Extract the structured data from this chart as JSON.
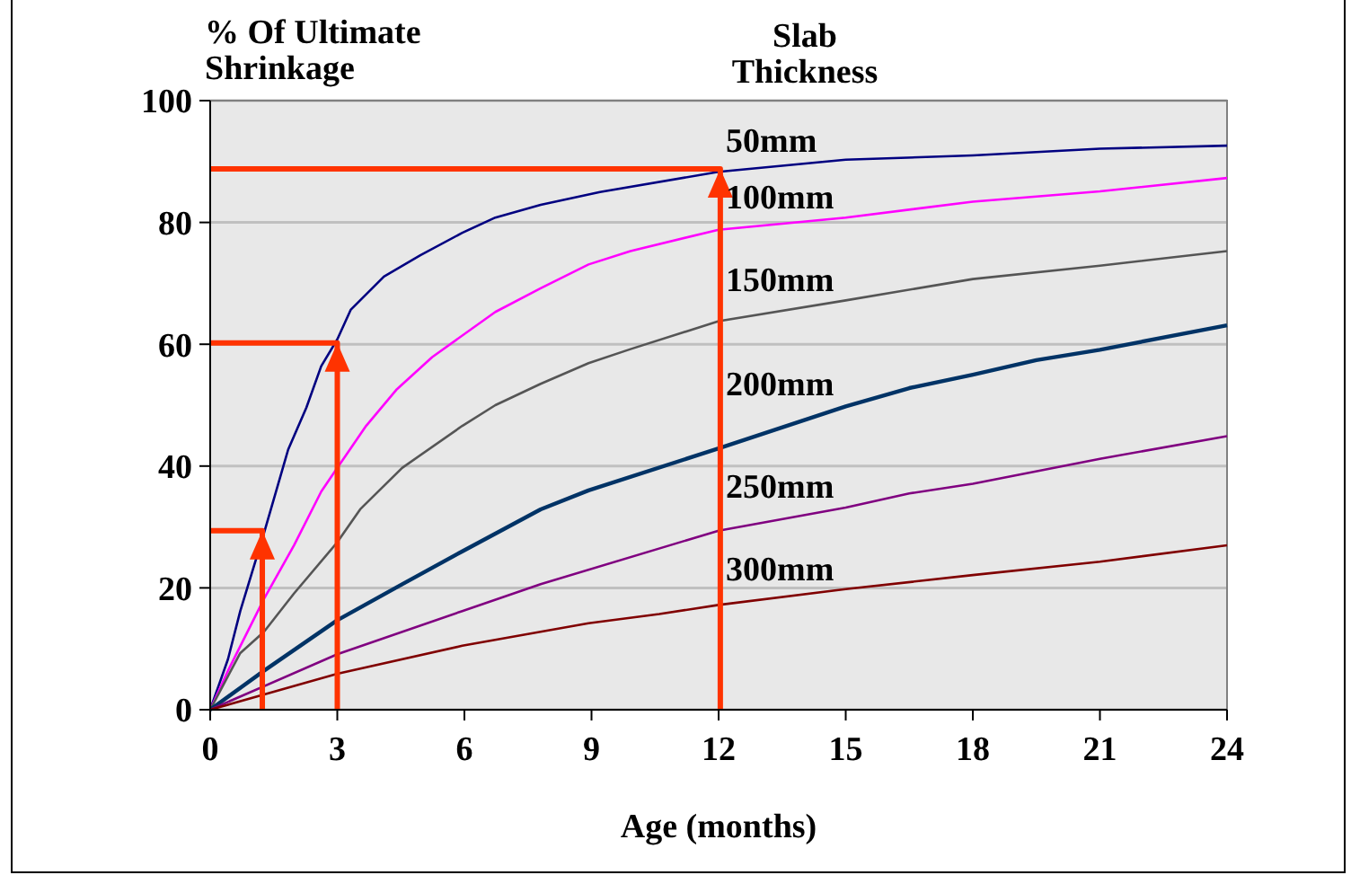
{
  "chart_data": {
    "type": "line",
    "ylabel": "% Of Ultimate\nShrinkage",
    "legend_title": "Slab\nThickness",
    "xlabel": "Age (months)",
    "xlim": [
      0,
      24
    ],
    "xticks": [
      0,
      3,
      6,
      9,
      12,
      15,
      18,
      21,
      24
    ],
    "ylim": [
      0,
      100
    ],
    "yticks": [
      0,
      20,
      40,
      60,
      80,
      100
    ],
    "grid": "y",
    "marker": "none",
    "line_style": "solid",
    "series": [
      {
        "name": "50mm",
        "color": "#000080",
        "x": [
          0,
          0.42,
          0.71,
          1.27,
          1.84,
          2.27,
          2.62,
          3,
          3.32,
          4.1,
          4.96,
          5.95,
          6.73,
          7.8,
          9.2,
          12,
          15,
          18,
          21,
          24
        ],
        "values": [
          0,
          8.3,
          16.2,
          29,
          42.7,
          49.6,
          56.4,
          60.8,
          65.7,
          71.1,
          74.6,
          78.3,
          80.8,
          82.9,
          85,
          88.3,
          90.3,
          91,
          92.1,
          92.6
        ]
      },
      {
        "name": "100mm",
        "color": "#ff00ff",
        "x": [
          0,
          0.42,
          1.27,
          1.98,
          2.62,
          3,
          3.68,
          4.39,
          5.24,
          6.73,
          7.8,
          8.93,
          9.92,
          12,
          15,
          18,
          21,
          24
        ],
        "values": [
          0,
          6.4,
          18.2,
          27,
          35.8,
          39.7,
          46.6,
          52.5,
          57.9,
          65.3,
          69.2,
          73.1,
          75.3,
          78.8,
          80.8,
          83.4,
          85.1,
          87.3
        ]
      },
      {
        "name": "150mm",
        "color": "#555555",
        "x": [
          0,
          0.71,
          1.27,
          1.98,
          3,
          3.54,
          4.53,
          5.95,
          6.73,
          7.8,
          8.93,
          9.92,
          12,
          15,
          18,
          21,
          24
        ],
        "values": [
          0,
          9.3,
          12.8,
          19.1,
          27.5,
          32.9,
          39.7,
          46.6,
          50,
          53.5,
          56.9,
          59.2,
          63.8,
          67.2,
          70.7,
          72.9,
          75.3
        ]
      },
      {
        "name": "200mm",
        "color": "#003366",
        "x": [
          0,
          1.27,
          3,
          4.53,
          5.95,
          7.8,
          8.93,
          12,
          15,
          16.5,
          18,
          19.5,
          21,
          24
        ],
        "values": [
          0,
          6.4,
          14.7,
          20.6,
          26,
          32.9,
          36,
          42.9,
          49.8,
          52.8,
          55,
          57.4,
          59.1,
          63.1
        ]
      },
      {
        "name": "250mm",
        "color": "#800080",
        "x": [
          0,
          3,
          5.95,
          7.8,
          12,
          15,
          16.5,
          18,
          21,
          24
        ],
        "values": [
          0,
          9.1,
          16.2,
          20.6,
          29.4,
          33.2,
          35.5,
          37.1,
          41.2,
          44.9
        ]
      },
      {
        "name": "300mm",
        "color": "#800000",
        "x": [
          0,
          3,
          5.95,
          8.93,
          10.6,
          12,
          15,
          18,
          21,
          24
        ],
        "values": [
          0,
          5.9,
          10.5,
          14.2,
          15.7,
          17.2,
          19.8,
          22.1,
          24.3,
          27
        ]
      },
      {
        "color": "#ff3300",
        "x": [
          0,
          1.23,
          1.23
        ],
        "values": [
          29.4,
          29.4,
          0
        ]
      },
      {
        "color": "#ff3300",
        "x": [
          0,
          3,
          3
        ],
        "values": [
          60.2,
          60.2,
          0
        ]
      },
      {
        "color": "#ff3300",
        "x": [
          0,
          12.04,
          12.04
        ],
        "values": [
          88.8,
          88.8,
          0
        ]
      }
    ]
  }
}
